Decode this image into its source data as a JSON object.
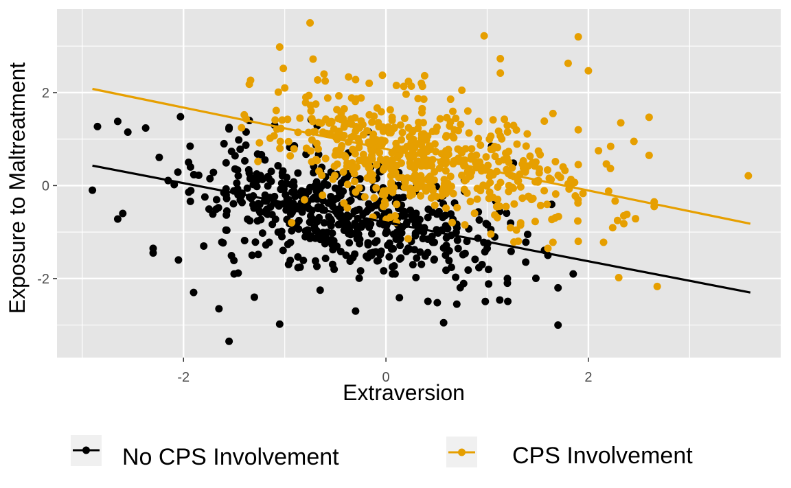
{
  "chart_data": {
    "type": "scatter",
    "title": "",
    "xlabel": "Extraversion",
    "ylabel": "Exposure to Maltreatment",
    "xlim": [
      -3.25,
      3.9
    ],
    "ylim": [
      -3.7,
      3.8
    ],
    "x_ticks": [
      -2,
      0,
      2
    ],
    "y_ticks": [
      -2,
      0,
      2
    ],
    "x_tick_labels": [
      "-2",
      "0",
      "2"
    ],
    "y_tick_labels": [
      "-2",
      "0",
      "2"
    ],
    "grid": true,
    "legend_position": "bottom",
    "colors": {
      "panel": "#e5e5e5",
      "grid": "#ffffff"
    },
    "series": [
      {
        "name": "No CPS Involvement",
        "color": "#000000",
        "point_count": 600,
        "x_mean": -0.45,
        "x_sd": 0.72,
        "y_noise_sd": 0.6,
        "seed": 11,
        "fit_line": {
          "x": [
            -2.9,
            3.6
          ],
          "y": [
            0.43,
            -2.3
          ]
        },
        "points": [
          [
            -2.9,
            -0.1
          ],
          [
            -2.65,
            1.38
          ],
          [
            -2.55,
            1.15
          ],
          [
            -2.65,
            -0.72
          ],
          [
            -2.6,
            -0.6
          ],
          [
            -2.3,
            -1.35
          ],
          [
            -2.3,
            -1.45
          ],
          [
            -2.05,
            -1.6
          ],
          [
            -2.03,
            1.48
          ],
          [
            -1.9,
            -2.3
          ],
          [
            -1.8,
            -1.3
          ],
          [
            -1.65,
            -2.65
          ],
          [
            -1.55,
            -3.35
          ],
          [
            -1.5,
            -1.9
          ],
          [
            -1.3,
            -2.4
          ],
          [
            -1.05,
            -2.98
          ],
          [
            -0.65,
            -2.25
          ],
          [
            -0.3,
            -2.7
          ],
          [
            0.57,
            -2.95
          ],
          [
            1.7,
            -3.0
          ],
          [
            0.7,
            -2.55
          ],
          [
            1.6,
            -1.5
          ],
          [
            1.85,
            -1.9
          ],
          [
            1.4,
            -1.05
          ],
          [
            1.7,
            -2.2
          ],
          [
            1.2,
            -2.0
          ],
          [
            1.2,
            -2.1
          ],
          [
            1.0,
            -1.35
          ],
          [
            0.95,
            -1.7
          ],
          [
            -1.35,
            1.4
          ],
          [
            -1.55,
            1.25
          ],
          [
            -1.1,
            1.3
          ],
          [
            -0.2,
            0.55
          ],
          [
            -0.05,
            0.3
          ],
          [
            0.1,
            -0.35
          ],
          [
            0.3,
            -0.7
          ],
          [
            0.5,
            -0.95
          ],
          [
            0.8,
            -1.2
          ],
          [
            -1.95,
            0.5
          ],
          [
            -1.6,
            0.9
          ]
        ]
      },
      {
        "name": "CPS Involvement",
        "color": "#e69f00",
        "point_count": 600,
        "x_mean": 0.35,
        "x_sd": 0.72,
        "y_noise_sd": 0.6,
        "seed": 29,
        "fit_line": {
          "x": [
            -2.9,
            3.6
          ],
          "y": [
            2.08,
            -0.82
          ]
        },
        "points": [
          [
            -0.75,
            3.5
          ],
          [
            -1.05,
            2.98
          ],
          [
            -0.72,
            2.72
          ],
          [
            0.97,
            3.22
          ],
          [
            1.9,
            3.2
          ],
          [
            1.8,
            2.63
          ],
          [
            2.0,
            2.47
          ],
          [
            1.13,
            2.73
          ],
          [
            1.13,
            2.42
          ],
          [
            3.58,
            0.21
          ],
          [
            2.6,
            1.47
          ],
          [
            2.32,
            1.35
          ],
          [
            2.45,
            0.95
          ],
          [
            2.6,
            0.65
          ],
          [
            2.2,
            -0.12
          ],
          [
            2.65,
            -0.35
          ],
          [
            2.65,
            -0.45
          ],
          [
            2.35,
            -0.65
          ],
          [
            2.38,
            -0.62
          ],
          [
            2.35,
            -0.82
          ],
          [
            2.15,
            -1.22
          ],
          [
            2.3,
            -1.98
          ],
          [
            2.68,
            -2.17
          ],
          [
            1.9,
            -1.2
          ],
          [
            1.6,
            -1.35
          ],
          [
            1.65,
            -1.22
          ],
          [
            -1.35,
            2.18
          ],
          [
            -1.0,
            2.1
          ],
          [
            -0.6,
            2.25
          ],
          [
            -0.3,
            2.28
          ],
          [
            0.35,
            2.2
          ],
          [
            0.75,
            2.05
          ],
          [
            -0.85,
            1.45
          ],
          [
            -1.4,
            1.52
          ],
          [
            -1.25,
            0.92
          ],
          [
            1.9,
            1.2
          ],
          [
            1.65,
            1.55
          ],
          [
            1.75,
            0.4
          ],
          [
            1.9,
            0.45
          ],
          [
            2.1,
            0.75
          ]
        ]
      }
    ]
  }
}
